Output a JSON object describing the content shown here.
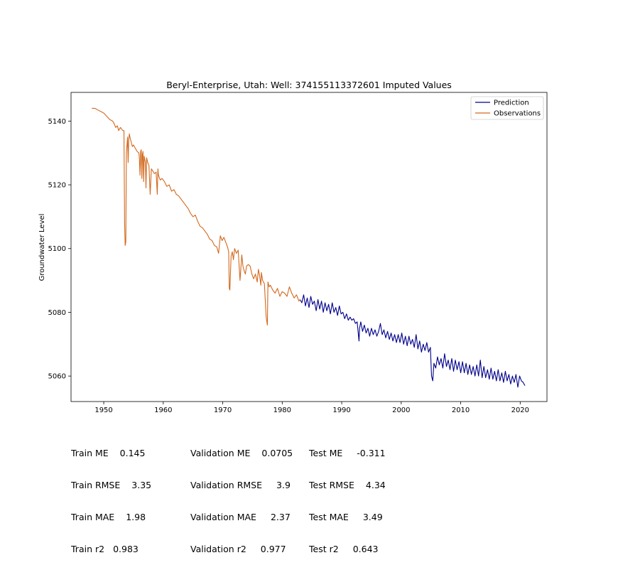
{
  "chart_data": {
    "type": "line",
    "title": "Beryl-Enterprise, Utah: Well: 374155113372601 Imputed Values",
    "xlabel": "",
    "ylabel": "Groundwater Level",
    "xlim": [
      1944.5,
      2024.5
    ],
    "ylim": [
      5052.0,
      5149.0
    ],
    "xticks": [
      1950,
      1960,
      1970,
      1980,
      1990,
      2000,
      2010,
      2020
    ],
    "yticks": [
      5060,
      5080,
      5100,
      5120,
      5140
    ],
    "grid": false,
    "legend_position": "top-right",
    "series": [
      {
        "name": "Prediction",
        "color": "#00008b",
        "x": [
          1983.0,
          1983.3,
          1983.6,
          1983.9,
          1984.2,
          1984.5,
          1984.8,
          1985.1,
          1985.4,
          1985.7,
          1986.0,
          1986.3,
          1986.6,
          1986.9,
          1987.2,
          1987.5,
          1987.8,
          1988.1,
          1988.4,
          1988.7,
          1989.0,
          1989.3,
          1989.6,
          1989.9,
          1990.2,
          1990.5,
          1990.8,
          1991.1,
          1991.4,
          1991.7,
          1992.0,
          1992.3,
          1992.6,
          1992.9,
          1993.0,
          1993.2,
          1993.5,
          1993.8,
          1994.1,
          1994.4,
          1994.7,
          1995.0,
          1995.3,
          1995.6,
          1995.9,
          1996.2,
          1996.5,
          1996.8,
          1997.1,
          1997.4,
          1997.7,
          1998.0,
          1998.3,
          1998.6,
          1998.9,
          1999.2,
          1999.5,
          1999.8,
          2000.1,
          2000.4,
          2000.7,
          2001.0,
          2001.3,
          2001.6,
          2001.9,
          2002.2,
          2002.5,
          2002.8,
          2003.1,
          2003.4,
          2003.7,
          2004.0,
          2004.3,
          2004.6,
          2004.9,
          2005.1,
          2005.3,
          2005.5,
          2005.8,
          2006.1,
          2006.4,
          2006.7,
          2007.0,
          2007.3,
          2007.6,
          2007.9,
          2008.2,
          2008.5,
          2008.8,
          2009.1,
          2009.4,
          2009.7,
          2010.0,
          2010.3,
          2010.6,
          2010.9,
          2011.2,
          2011.5,
          2011.8,
          2012.1,
          2012.4,
          2012.7,
          2013.0,
          2013.3,
          2013.6,
          2013.9,
          2014.2,
          2014.5,
          2014.8,
          2015.1,
          2015.4,
          2015.7,
          2016.0,
          2016.3,
          2016.6,
          2016.9,
          2017.2,
          2017.5,
          2017.8,
          2018.1,
          2018.4,
          2018.7,
          2019.0,
          2019.3,
          2019.6,
          2019.9,
          2020.2,
          2020.5,
          2020.8
        ],
        "y": [
          5084.0,
          5083.0,
          5085.5,
          5082.0,
          5084.5,
          5081.5,
          5085.0,
          5082.5,
          5083.5,
          5080.5,
          5084.0,
          5081.0,
          5083.5,
          5080.0,
          5083.0,
          5080.5,
          5082.5,
          5079.5,
          5083.0,
          5080.0,
          5081.5,
          5079.0,
          5082.0,
          5079.5,
          5080.0,
          5078.0,
          5079.5,
          5077.5,
          5078.5,
          5077.5,
          5078.0,
          5076.5,
          5077.0,
          5071.0,
          5075.0,
          5077.0,
          5074.0,
          5076.0,
          5073.5,
          5075.0,
          5072.5,
          5075.0,
          5073.0,
          5074.5,
          5072.5,
          5074.0,
          5076.5,
          5073.0,
          5074.5,
          5072.0,
          5074.0,
          5071.5,
          5073.5,
          5071.0,
          5073.0,
          5070.5,
          5073.0,
          5070.5,
          5073.5,
          5070.0,
          5072.5,
          5069.5,
          5072.5,
          5070.0,
          5071.5,
          5069.0,
          5073.0,
          5068.5,
          5071.0,
          5067.5,
          5070.0,
          5068.0,
          5070.5,
          5067.5,
          5069.0,
          5060.0,
          5058.5,
          5064.0,
          5062.5,
          5066.0,
          5063.5,
          5065.5,
          5062.5,
          5067.0,
          5063.0,
          5065.0,
          5062.0,
          5065.5,
          5061.5,
          5065.0,
          5062.0,
          5064.5,
          5061.0,
          5064.5,
          5061.0,
          5064.0,
          5060.5,
          5063.5,
          5060.5,
          5063.0,
          5060.0,
          5063.5,
          5060.0,
          5065.0,
          5059.5,
          5063.0,
          5059.5,
          5062.0,
          5059.0,
          5062.5,
          5059.0,
          5061.5,
          5058.5,
          5062.0,
          5058.5,
          5061.0,
          5058.0,
          5061.5,
          5058.5,
          5060.5,
          5057.5,
          5060.0,
          5058.0,
          5060.5,
          5056.5,
          5060.0,
          5058.5,
          5058.0,
          5057.0
        ],
        "labels": []
      },
      {
        "name": "Observations",
        "color": "#d2691e",
        "x": [
          1948.0,
          1948.5,
          1949.0,
          1949.5,
          1950.0,
          1950.5,
          1951.0,
          1951.5,
          1951.8,
          1952.0,
          1952.3,
          1952.5,
          1952.8,
          1953.0,
          1953.2,
          1953.4,
          1953.5,
          1953.6,
          1953.7,
          1953.8,
          1954.0,
          1954.1,
          1954.2,
          1954.3,
          1954.4,
          1954.6,
          1954.8,
          1955.0,
          1955.3,
          1955.6,
          1955.9,
          1956.0,
          1956.1,
          1956.2,
          1956.3,
          1956.4,
          1956.5,
          1956.6,
          1956.7,
          1956.8,
          1957.0,
          1957.1,
          1957.2,
          1957.4,
          1957.6,
          1957.8,
          1958.0,
          1958.2,
          1958.5,
          1958.8,
          1959.0,
          1959.1,
          1959.2,
          1959.5,
          1959.8,
          1960.2,
          1960.6,
          1961.0,
          1961.4,
          1961.8,
          1962.2,
          1962.6,
          1963.0,
          1963.4,
          1963.8,
          1964.2,
          1964.6,
          1965.0,
          1965.4,
          1965.8,
          1966.2,
          1966.6,
          1967.0,
          1967.4,
          1967.8,
          1968.2,
          1968.6,
          1969.0,
          1969.3,
          1969.6,
          1969.9,
          1970.2,
          1970.5,
          1970.8,
          1971.0,
          1971.1,
          1971.2,
          1971.4,
          1971.6,
          1971.8,
          1972.0,
          1972.3,
          1972.6,
          1972.9,
          1973.2,
          1973.4,
          1973.6,
          1973.8,
          1974.0,
          1974.3,
          1974.6,
          1974.9,
          1975.2,
          1975.5,
          1975.8,
          1976.0,
          1976.2,
          1976.4,
          1976.5,
          1976.7,
          1977.0,
          1977.3,
          1977.5,
          1977.6,
          1977.8,
          1978.0,
          1978.4,
          1978.8,
          1979.2,
          1979.6,
          1980.0,
          1980.4,
          1980.8,
          1981.2,
          1981.6,
          1982.0,
          1982.4,
          1982.8,
          1983.0
        ],
        "y": [
          5144.0,
          5144.0,
          5143.5,
          5143.0,
          5142.5,
          5141.5,
          5140.5,
          5140.0,
          5139.0,
          5138.0,
          5138.5,
          5137.0,
          5138.0,
          5137.5,
          5137.0,
          5137.0,
          5108.0,
          5101.0,
          5102.0,
          5130.0,
          5135.0,
          5127.0,
          5134.0,
          5136.0,
          5135.0,
          5133.5,
          5132.0,
          5132.5,
          5131.5,
          5130.5,
          5130.0,
          5128.0,
          5123.0,
          5130.5,
          5131.0,
          5122.0,
          5129.5,
          5130.5,
          5121.0,
          5129.0,
          5127.0,
          5119.0,
          5128.5,
          5127.0,
          5126.0,
          5117.0,
          5125.0,
          5124.5,
          5123.5,
          5124.0,
          5117.0,
          5125.0,
          5123.0,
          5121.5,
          5122.0,
          5121.0,
          5119.5,
          5120.0,
          5118.0,
          5118.5,
          5117.0,
          5116.5,
          5115.5,
          5114.5,
          5113.5,
          5112.5,
          5111.0,
          5110.0,
          5110.5,
          5108.5,
          5107.0,
          5106.5,
          5105.5,
          5104.5,
          5103.0,
          5102.5,
          5101.0,
          5100.5,
          5098.5,
          5104.0,
          5102.5,
          5103.5,
          5102.0,
          5100.5,
          5099.0,
          5087.5,
          5087.0,
          5097.5,
          5099.0,
          5096.5,
          5100.0,
          5098.5,
          5099.5,
          5090.0,
          5098.0,
          5094.5,
          5093.0,
          5092.0,
          5094.5,
          5095.0,
          5094.5,
          5092.0,
          5090.5,
          5092.0,
          5089.5,
          5093.5,
          5091.5,
          5088.5,
          5092.5,
          5090.0,
          5089.0,
          5078.5,
          5076.0,
          5089.5,
          5088.0,
          5088.5,
          5087.0,
          5086.0,
          5087.5,
          5085.0,
          5086.5,
          5086.0,
          5085.0,
          5088.0,
          5086.0,
          5084.5,
          5085.5,
          5083.5,
          5084.0
        ],
        "labels": []
      }
    ]
  },
  "metrics": {
    "train": {
      "me_label": "Train ME",
      "me": "0.145",
      "rmse_label": "Train RMSE",
      "rmse": "3.35",
      "mae_label": "Train MAE",
      "mae": "1.98",
      "r2_label": "Train r2",
      "r2": "0.983"
    },
    "validation": {
      "me_label": "Validation ME",
      "me": "0.0705",
      "rmse_label": "Validation RMSE",
      "rmse": "3.9",
      "mae_label": "Validation MAE",
      "mae": "2.37",
      "r2_label": "Validation r2",
      "r2": "0.977"
    },
    "test": {
      "me_label": "Test ME",
      "me": "-0.311",
      "rmse_label": "Test RMSE",
      "rmse": "4.34",
      "mae_label": "Test MAE",
      "mae": "3.49",
      "r2_label": "Test r2",
      "r2": "0.643"
    }
  }
}
